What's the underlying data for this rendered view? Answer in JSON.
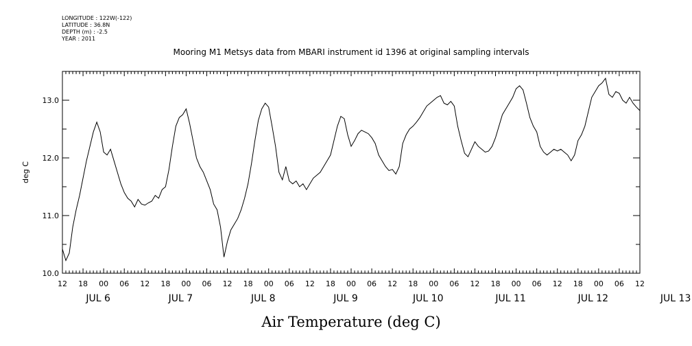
{
  "meta": [
    "LONGITUDE : 122W(-122)",
    "LATITUDE : 36.8N",
    "DEPTH (m) : -2.5",
    "YEAR : 2011"
  ],
  "chart_data": {
    "type": "line",
    "title": "Mooring M1 Metsys data from MBARI instrument id 1396 at original sampling intervals",
    "xlabel": "Air Temperature (deg C)",
    "ylabel": "deg C",
    "xlim": [
      "2011-07-06T12:00",
      "2011-07-13T12:00"
    ],
    "ylim": [
      10.0,
      13.5
    ],
    "yticks_labeled": [
      "10.0",
      "11.0",
      "12.0",
      "13.0"
    ],
    "hour_tick_labels": [
      "12",
      "18",
      "00",
      "06",
      "12",
      "18",
      "00",
      "06",
      "12",
      "18",
      "00",
      "06",
      "12",
      "18",
      "00",
      "06",
      "12",
      "18",
      "00",
      "06",
      "12",
      "18",
      "00",
      "06",
      "12",
      "18",
      "00",
      "06",
      "12"
    ],
    "date_labels": [
      "JUL  6",
      "JUL  7",
      "JUL  8",
      "JUL  9",
      "JUL 10",
      "JUL 11",
      "JUL 12",
      "JUL 13"
    ],
    "series": [
      {
        "color": "#000000",
        "points": [
          [
            "2011-07-06T12:00",
            10.42
          ],
          [
            "2011-07-06T13:00",
            10.22
          ],
          [
            "2011-07-06T14:00",
            10.35
          ],
          [
            "2011-07-06T15:00",
            10.8
          ],
          [
            "2011-07-06T16:00",
            11.1
          ],
          [
            "2011-07-06T17:00",
            11.35
          ],
          [
            "2011-07-06T18:00",
            11.65
          ],
          [
            "2011-07-06T19:00",
            11.95
          ],
          [
            "2011-07-06T20:00",
            12.2
          ],
          [
            "2011-07-06T21:00",
            12.45
          ],
          [
            "2011-07-06T22:00",
            12.62
          ],
          [
            "2011-07-06T23:00",
            12.45
          ],
          [
            "2011-07-07T00:00",
            12.1
          ],
          [
            "2011-07-07T01:00",
            12.05
          ],
          [
            "2011-07-07T02:00",
            12.15
          ],
          [
            "2011-07-07T03:00",
            11.95
          ],
          [
            "2011-07-07T04:00",
            11.75
          ],
          [
            "2011-07-07T05:00",
            11.55
          ],
          [
            "2011-07-07T06:00",
            11.4
          ],
          [
            "2011-07-07T07:00",
            11.3
          ],
          [
            "2011-07-07T08:00",
            11.25
          ],
          [
            "2011-07-07T09:00",
            11.15
          ],
          [
            "2011-07-07T10:00",
            11.28
          ],
          [
            "2011-07-07T11:00",
            11.2
          ],
          [
            "2011-07-07T12:00",
            11.18
          ],
          [
            "2011-07-07T13:00",
            11.22
          ],
          [
            "2011-07-07T14:00",
            11.25
          ],
          [
            "2011-07-07T15:00",
            11.35
          ],
          [
            "2011-07-07T16:00",
            11.3
          ],
          [
            "2011-07-07T17:00",
            11.45
          ],
          [
            "2011-07-07T18:00",
            11.5
          ],
          [
            "2011-07-07T19:00",
            11.8
          ],
          [
            "2011-07-07T20:00",
            12.2
          ],
          [
            "2011-07-07T21:00",
            12.55
          ],
          [
            "2011-07-07T22:00",
            12.7
          ],
          [
            "2011-07-07T23:00",
            12.75
          ],
          [
            "2011-07-08T00:00",
            12.85
          ],
          [
            "2011-07-08T01:00",
            12.6
          ],
          [
            "2011-07-08T02:00",
            12.3
          ],
          [
            "2011-07-08T03:00",
            12.0
          ],
          [
            "2011-07-08T04:00",
            11.85
          ],
          [
            "2011-07-08T05:00",
            11.75
          ],
          [
            "2011-07-08T06:00",
            11.6
          ],
          [
            "2011-07-08T07:00",
            11.45
          ],
          [
            "2011-07-08T08:00",
            11.2
          ],
          [
            "2011-07-08T09:00",
            11.1
          ],
          [
            "2011-07-08T10:00",
            10.8
          ],
          [
            "2011-07-08T11:00",
            10.28
          ],
          [
            "2011-07-08T12:00",
            10.55
          ],
          [
            "2011-07-08T13:00",
            10.75
          ],
          [
            "2011-07-08T14:00",
            10.85
          ],
          [
            "2011-07-08T15:00",
            10.95
          ],
          [
            "2011-07-08T16:00",
            11.1
          ],
          [
            "2011-07-08T17:00",
            11.3
          ],
          [
            "2011-07-08T18:00",
            11.55
          ],
          [
            "2011-07-08T19:00",
            11.9
          ],
          [
            "2011-07-08T20:00",
            12.3
          ],
          [
            "2011-07-08T21:00",
            12.65
          ],
          [
            "2011-07-08T22:00",
            12.85
          ],
          [
            "2011-07-08T23:00",
            12.95
          ],
          [
            "2011-07-09T00:00",
            12.88
          ],
          [
            "2011-07-09T01:00",
            12.55
          ],
          [
            "2011-07-09T02:00",
            12.2
          ],
          [
            "2011-07-09T03:00",
            11.75
          ],
          [
            "2011-07-09T04:00",
            11.62
          ],
          [
            "2011-07-09T05:00",
            11.85
          ],
          [
            "2011-07-09T06:00",
            11.6
          ],
          [
            "2011-07-09T07:00",
            11.55
          ],
          [
            "2011-07-09T08:00",
            11.6
          ],
          [
            "2011-07-09T09:00",
            11.5
          ],
          [
            "2011-07-09T10:00",
            11.55
          ],
          [
            "2011-07-09T11:00",
            11.45
          ],
          [
            "2011-07-09T12:00",
            11.55
          ],
          [
            "2011-07-09T13:00",
            11.65
          ],
          [
            "2011-07-09T14:00",
            11.7
          ],
          [
            "2011-07-09T15:00",
            11.75
          ],
          [
            "2011-07-09T16:00",
            11.85
          ],
          [
            "2011-07-09T17:00",
            11.95
          ],
          [
            "2011-07-09T18:00",
            12.05
          ],
          [
            "2011-07-09T19:00",
            12.3
          ],
          [
            "2011-07-09T20:00",
            12.55
          ],
          [
            "2011-07-09T21:00",
            12.72
          ],
          [
            "2011-07-09T22:00",
            12.68
          ],
          [
            "2011-07-09T23:00",
            12.4
          ],
          [
            "2011-07-10T00:00",
            12.2
          ],
          [
            "2011-07-10T01:00",
            12.3
          ],
          [
            "2011-07-10T02:00",
            12.42
          ],
          [
            "2011-07-10T03:00",
            12.48
          ],
          [
            "2011-07-10T04:00",
            12.45
          ],
          [
            "2011-07-10T05:00",
            12.42
          ],
          [
            "2011-07-10T06:00",
            12.35
          ],
          [
            "2011-07-10T07:00",
            12.25
          ],
          [
            "2011-07-10T08:00",
            12.05
          ],
          [
            "2011-07-10T09:00",
            11.95
          ],
          [
            "2011-07-10T10:00",
            11.85
          ],
          [
            "2011-07-10T11:00",
            11.78
          ],
          [
            "2011-07-10T12:00",
            11.8
          ],
          [
            "2011-07-10T13:00",
            11.72
          ],
          [
            "2011-07-10T14:00",
            11.85
          ],
          [
            "2011-07-10T15:00",
            12.25
          ],
          [
            "2011-07-10T16:00",
            12.4
          ],
          [
            "2011-07-10T17:00",
            12.5
          ],
          [
            "2011-07-10T18:00",
            12.55
          ],
          [
            "2011-07-10T19:00",
            12.62
          ],
          [
            "2011-07-10T20:00",
            12.7
          ],
          [
            "2011-07-10T21:00",
            12.8
          ],
          [
            "2011-07-10T22:00",
            12.9
          ],
          [
            "2011-07-10T23:00",
            12.95
          ],
          [
            "2011-07-11T00:00",
            13.0
          ],
          [
            "2011-07-11T01:00",
            13.05
          ],
          [
            "2011-07-11T02:00",
            13.08
          ],
          [
            "2011-07-11T03:00",
            12.95
          ],
          [
            "2011-07-11T04:00",
            12.92
          ],
          [
            "2011-07-11T05:00",
            12.98
          ],
          [
            "2011-07-11T06:00",
            12.9
          ],
          [
            "2011-07-11T07:00",
            12.55
          ],
          [
            "2011-07-11T08:00",
            12.3
          ],
          [
            "2011-07-11T09:00",
            12.08
          ],
          [
            "2011-07-11T10:00",
            12.02
          ],
          [
            "2011-07-11T11:00",
            12.15
          ],
          [
            "2011-07-11T12:00",
            12.28
          ],
          [
            "2011-07-11T13:00",
            12.2
          ],
          [
            "2011-07-11T14:00",
            12.15
          ],
          [
            "2011-07-11T15:00",
            12.1
          ],
          [
            "2011-07-11T16:00",
            12.12
          ],
          [
            "2011-07-11T17:00",
            12.2
          ],
          [
            "2011-07-11T18:00",
            12.35
          ],
          [
            "2011-07-11T19:00",
            12.55
          ],
          [
            "2011-07-11T20:00",
            12.75
          ],
          [
            "2011-07-11T21:00",
            12.85
          ],
          [
            "2011-07-11T22:00",
            12.95
          ],
          [
            "2011-07-11T23:00",
            13.05
          ],
          [
            "2011-07-12T00:00",
            13.2
          ],
          [
            "2011-07-12T01:00",
            13.25
          ],
          [
            "2011-07-12T02:00",
            13.18
          ],
          [
            "2011-07-12T03:00",
            12.95
          ],
          [
            "2011-07-12T04:00",
            12.7
          ],
          [
            "2011-07-12T05:00",
            12.55
          ],
          [
            "2011-07-12T06:00",
            12.45
          ],
          [
            "2011-07-12T07:00",
            12.2
          ],
          [
            "2011-07-12T08:00",
            12.1
          ],
          [
            "2011-07-12T09:00",
            12.05
          ],
          [
            "2011-07-12T10:00",
            12.1
          ],
          [
            "2011-07-12T11:00",
            12.15
          ],
          [
            "2011-07-12T12:00",
            12.12
          ],
          [
            "2011-07-12T13:00",
            12.15
          ],
          [
            "2011-07-12T14:00",
            12.1
          ],
          [
            "2011-07-12T15:00",
            12.05
          ],
          [
            "2011-07-12T16:00",
            11.95
          ],
          [
            "2011-07-12T17:00",
            12.05
          ],
          [
            "2011-07-12T18:00",
            12.3
          ],
          [
            "2011-07-12T19:00",
            12.4
          ],
          [
            "2011-07-12T20:00",
            12.55
          ],
          [
            "2011-07-12T21:00",
            12.8
          ],
          [
            "2011-07-12T22:00",
            13.05
          ],
          [
            "2011-07-12T23:00",
            13.15
          ],
          [
            "2011-07-13T00:00",
            13.25
          ],
          [
            "2011-07-13T01:00",
            13.3
          ],
          [
            "2011-07-13T02:00",
            13.38
          ],
          [
            "2011-07-13T03:00",
            13.1
          ],
          [
            "2011-07-13T04:00",
            13.05
          ],
          [
            "2011-07-13T05:00",
            13.15
          ],
          [
            "2011-07-13T06:00",
            13.12
          ],
          [
            "2011-07-13T07:00",
            13.0
          ],
          [
            "2011-07-13T08:00",
            12.95
          ],
          [
            "2011-07-13T09:00",
            13.05
          ],
          [
            "2011-07-13T10:00",
            12.95
          ],
          [
            "2011-07-13T11:00",
            12.88
          ],
          [
            "2011-07-13T12:00",
            12.82
          ]
        ]
      }
    ]
  }
}
